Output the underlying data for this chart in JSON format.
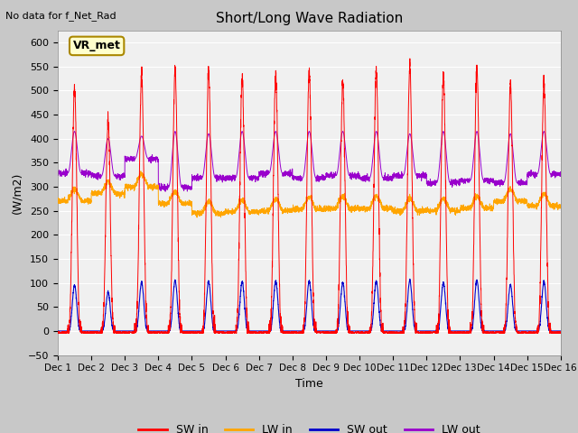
{
  "title": "Short/Long Wave Radiation",
  "xlabel": "Time",
  "ylabel": "(W/m2)",
  "top_left_text": "No data for f_Net_Rad",
  "legend_label_text": "VR_met",
  "ylim": [
    -50,
    625
  ],
  "yticks": [
    -50,
    0,
    50,
    100,
    150,
    200,
    250,
    300,
    350,
    400,
    450,
    500,
    550,
    600
  ],
  "xtick_labels": [
    "Dec 1",
    "Dec 2",
    "Dec 3",
    "Dec 4",
    "Dec 5",
    "Dec 6",
    "Dec 7",
    "Dec 8",
    "Dec 9",
    "Dec 10",
    "Dec 11",
    "Dec 12",
    "Dec 13",
    "Dec 14",
    "Dec 15",
    "Dec 16"
  ],
  "sw_in_color": "#ff0000",
  "lw_in_color": "#ffa500",
  "sw_out_color": "#0000cc",
  "lw_out_color": "#9900cc",
  "fig_bg_color": "#c8c8c8",
  "plot_bg_color": "#f0f0f0",
  "grid_color": "#ffffff",
  "n_days": 15,
  "sw_in_peaks": [
    505,
    435,
    530,
    545,
    540,
    525,
    530,
    535,
    515,
    540,
    550,
    530,
    545,
    510,
    515
  ],
  "lw_in_base": [
    270,
    285,
    300,
    265,
    245,
    248,
    250,
    253,
    255,
    255,
    250,
    250,
    255,
    270,
    260
  ],
  "lw_out_base": [
    328,
    322,
    358,
    298,
    318,
    318,
    328,
    318,
    323,
    318,
    323,
    308,
    313,
    308,
    326
  ],
  "lw_out_peaks": [
    415,
    400,
    405,
    415,
    410,
    415,
    415,
    415,
    415,
    415,
    410,
    415,
    415,
    410,
    415
  ],
  "sw_out_peaks": [
    95,
    80,
    100,
    105,
    103,
    102,
    103,
    103,
    100,
    103,
    105,
    100,
    105,
    95,
    102
  ]
}
